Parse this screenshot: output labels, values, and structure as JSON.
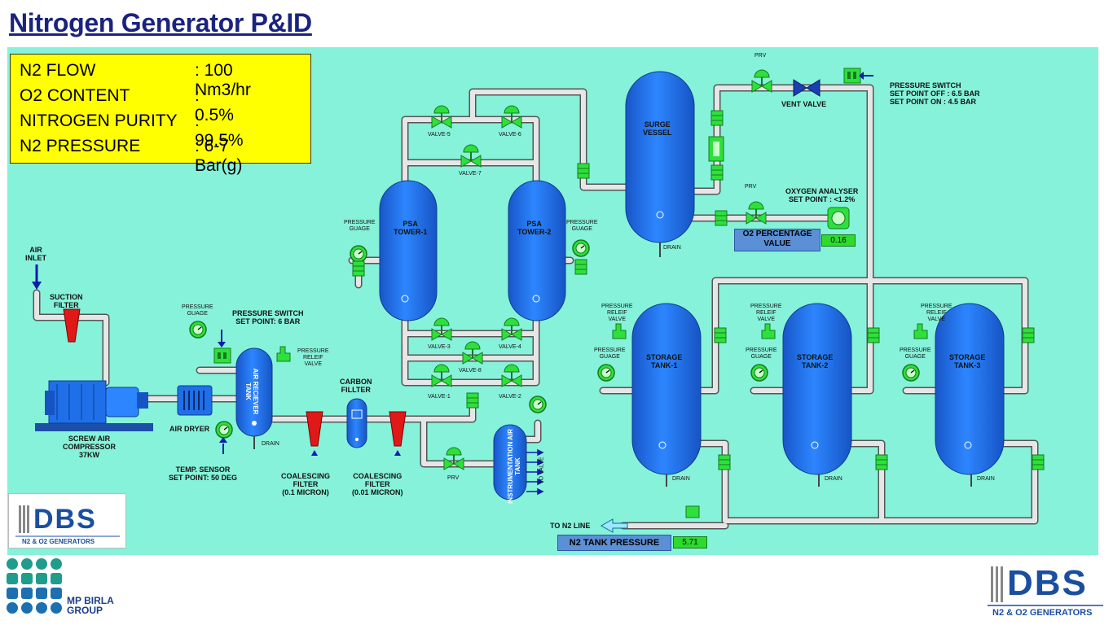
{
  "title": "Nitrogen Generator P&ID",
  "specs": [
    {
      "label": "N2 FLOW",
      "value": ": 100 Nm3/hr"
    },
    {
      "label": "O2 CONTENT",
      "value": ": 0.5%"
    },
    {
      "label": "NITROGEN PURITY",
      "value": ": 99.5%"
    },
    {
      "label": "N2 PRESSURE",
      "value": ": 6-7 Bar(g)"
    }
  ],
  "labels": {
    "air_inlet": "AIR\nINLET",
    "suction_filter": "SUCTION\nFILTER",
    "compressor": "SCREW AIR\nCOMPRESSOR\n37KW",
    "air_dryer": "AIR DRYER",
    "temp_sensor": "TEMP. SENSOR\nSET POINT: 50 DEG",
    "pressure_gauge_1": "PRESSURE\nGUAGE",
    "pressure_switch_1": "PRESSURE SWITCH\nSET POINT: 6 BAR",
    "pressure_relief_1": "PRESSURE\nRELEIF\nVALVE",
    "air_receiver": "AIR\nRECIEVER\nTANK",
    "drain": "DRAIN",
    "carbon_filter": "CARBON\nFILLTER",
    "coalescing_1": "COALESCING\nFILTER\n(0.1 MICRON)",
    "coalescing_2": "COALESCING\nFILTER\n(0.01 MICRON)",
    "psa_1": "PSA\nTOWER-1",
    "psa_2": "PSA\nTOWER-2",
    "pressure_gauge_psa1": "PRESSURE\nGUAGE",
    "pressure_gauge_psa2": "PRESSURE\nGUAGE",
    "valve_1": "VALVE-1",
    "valve_2": "VALVE-2",
    "valve_3": "VALVE-3",
    "valve_4": "VALVE-4",
    "valve_5": "VALVE-5",
    "valve_6": "VALVE-6",
    "valve_7": "VALVE-7",
    "valve_8": "VALVE-8",
    "prv": "PRV",
    "instrumentation_tank": "INSTRUMENTATION\nAIR TANK",
    "to_valve": "TO VALVE",
    "surge_vessel": "SURGE\nVESSEL",
    "vent_valve": "VENT VALVE",
    "pressure_switch_2": "PRESSURE SWITCH\nSET POINT OFF : 6.5 BAR\nSET POINT ON  : 4.5 BAR",
    "oxygen_analyser": "OXYGEN ANALYSER\nSET POINT : <1.2%",
    "o2_percentage": "O2 PERCENTAGE\nVALUE",
    "o2_value": "0.16",
    "storage_1": "STORAGE\nTANK-1",
    "storage_2": "STORAGE\nTANK-2",
    "storage_3": "STORAGE\nTANK-3",
    "relief_storage": "PRESSURE\nRELEIF\nVALVE",
    "gauge_storage": "PRESSURE\nGUAGE",
    "to_n2_line": "TO N2 LINE",
    "n2_tank_pressure": "N2 TANK PRESSURE",
    "n2_tank_value": "5.71"
  },
  "logos": {
    "dbs_word": "DBS",
    "dbs_sub": "N2 & O2 GENERATORS",
    "mp_birla": "MP BIRLA\nGROUP"
  },
  "colors": {
    "background": "#86f2da",
    "vessel": "#1f6fe8",
    "valve": "#2ee03c",
    "filter": "#e01818",
    "spec_box": "#ffff00",
    "status_box": "#5b8fd6",
    "value_box": "#2ddb2d"
  }
}
